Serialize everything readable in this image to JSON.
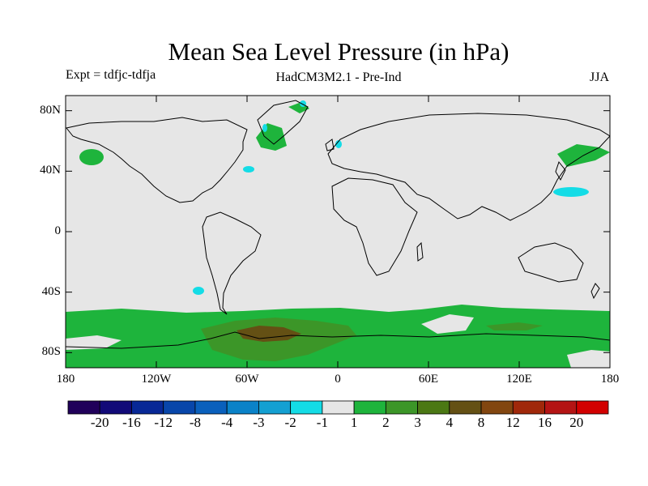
{
  "title": "Mean Sea Level Pressure (in hPa)",
  "subtitle_left": "Expt = tdfjc-tdfja",
  "subtitle_center": "HadCM3M2.1 - Pre-Ind",
  "subtitle_right": "JJA",
  "map": {
    "projection": "equirectangular",
    "lon_range": [
      -180,
      180
    ],
    "lat_range": [
      -90,
      90
    ],
    "background_color": "#e6e6e6",
    "coastline_color": "#000000"
  },
  "axes": {
    "y_ticks": [
      {
        "lat": 80,
        "label": "80N"
      },
      {
        "lat": 40,
        "label": "40N"
      },
      {
        "lat": 0,
        "label": "0"
      },
      {
        "lat": -40,
        "label": "40S"
      },
      {
        "lat": -80,
        "label": "80S"
      }
    ],
    "x_ticks": [
      {
        "lon": -180,
        "label": "180"
      },
      {
        "lon": -120,
        "label": "120W"
      },
      {
        "lon": -60,
        "label": "60W"
      },
      {
        "lon": 0,
        "label": "0"
      },
      {
        "lon": 60,
        "label": "60E"
      },
      {
        "lon": 120,
        "label": "120E"
      },
      {
        "lon": 180,
        "label": "180"
      }
    ]
  },
  "colorbar": {
    "colors": [
      "#20005a",
      "#120a78",
      "#082896",
      "#0846aa",
      "#0a60bc",
      "#0a82c8",
      "#14a0d2",
      "#14dce6",
      "#e6e6e6",
      "#1eb43c",
      "#3c9628",
      "#4b7814",
      "#645014",
      "#824610",
      "#a0280a",
      "#b41414",
      "#d20000"
    ],
    "labels": [
      "-20",
      "-16",
      "-12",
      "-8",
      "-4",
      "-3",
      "-2",
      "-1",
      "1",
      "2",
      "3",
      "4",
      "8",
      "12",
      "16",
      "20"
    ]
  },
  "features": [
    {
      "name": "southern-ocean-positive-band",
      "level": 2,
      "color": "#1eb43c"
    },
    {
      "name": "antarctic-high",
      "level": 3,
      "color": "#3c9628"
    },
    {
      "name": "antarctic-core",
      "level": 4,
      "color": "#645014"
    },
    {
      "name": "north-pacific-positive",
      "level": 2,
      "color": "#1eb43c"
    },
    {
      "name": "northwest-pacific-positive",
      "level": 2,
      "color": "#1eb43c"
    },
    {
      "name": "greenland-positive",
      "level": 2,
      "color": "#1eb43c"
    },
    {
      "name": "north-pacific-negative",
      "level": -1,
      "color": "#14dce6"
    },
    {
      "name": "atlantic-negative",
      "level": -1,
      "color": "#14dce6"
    },
    {
      "name": "south-pacific-negative",
      "level": -1,
      "color": "#14dce6"
    }
  ]
}
